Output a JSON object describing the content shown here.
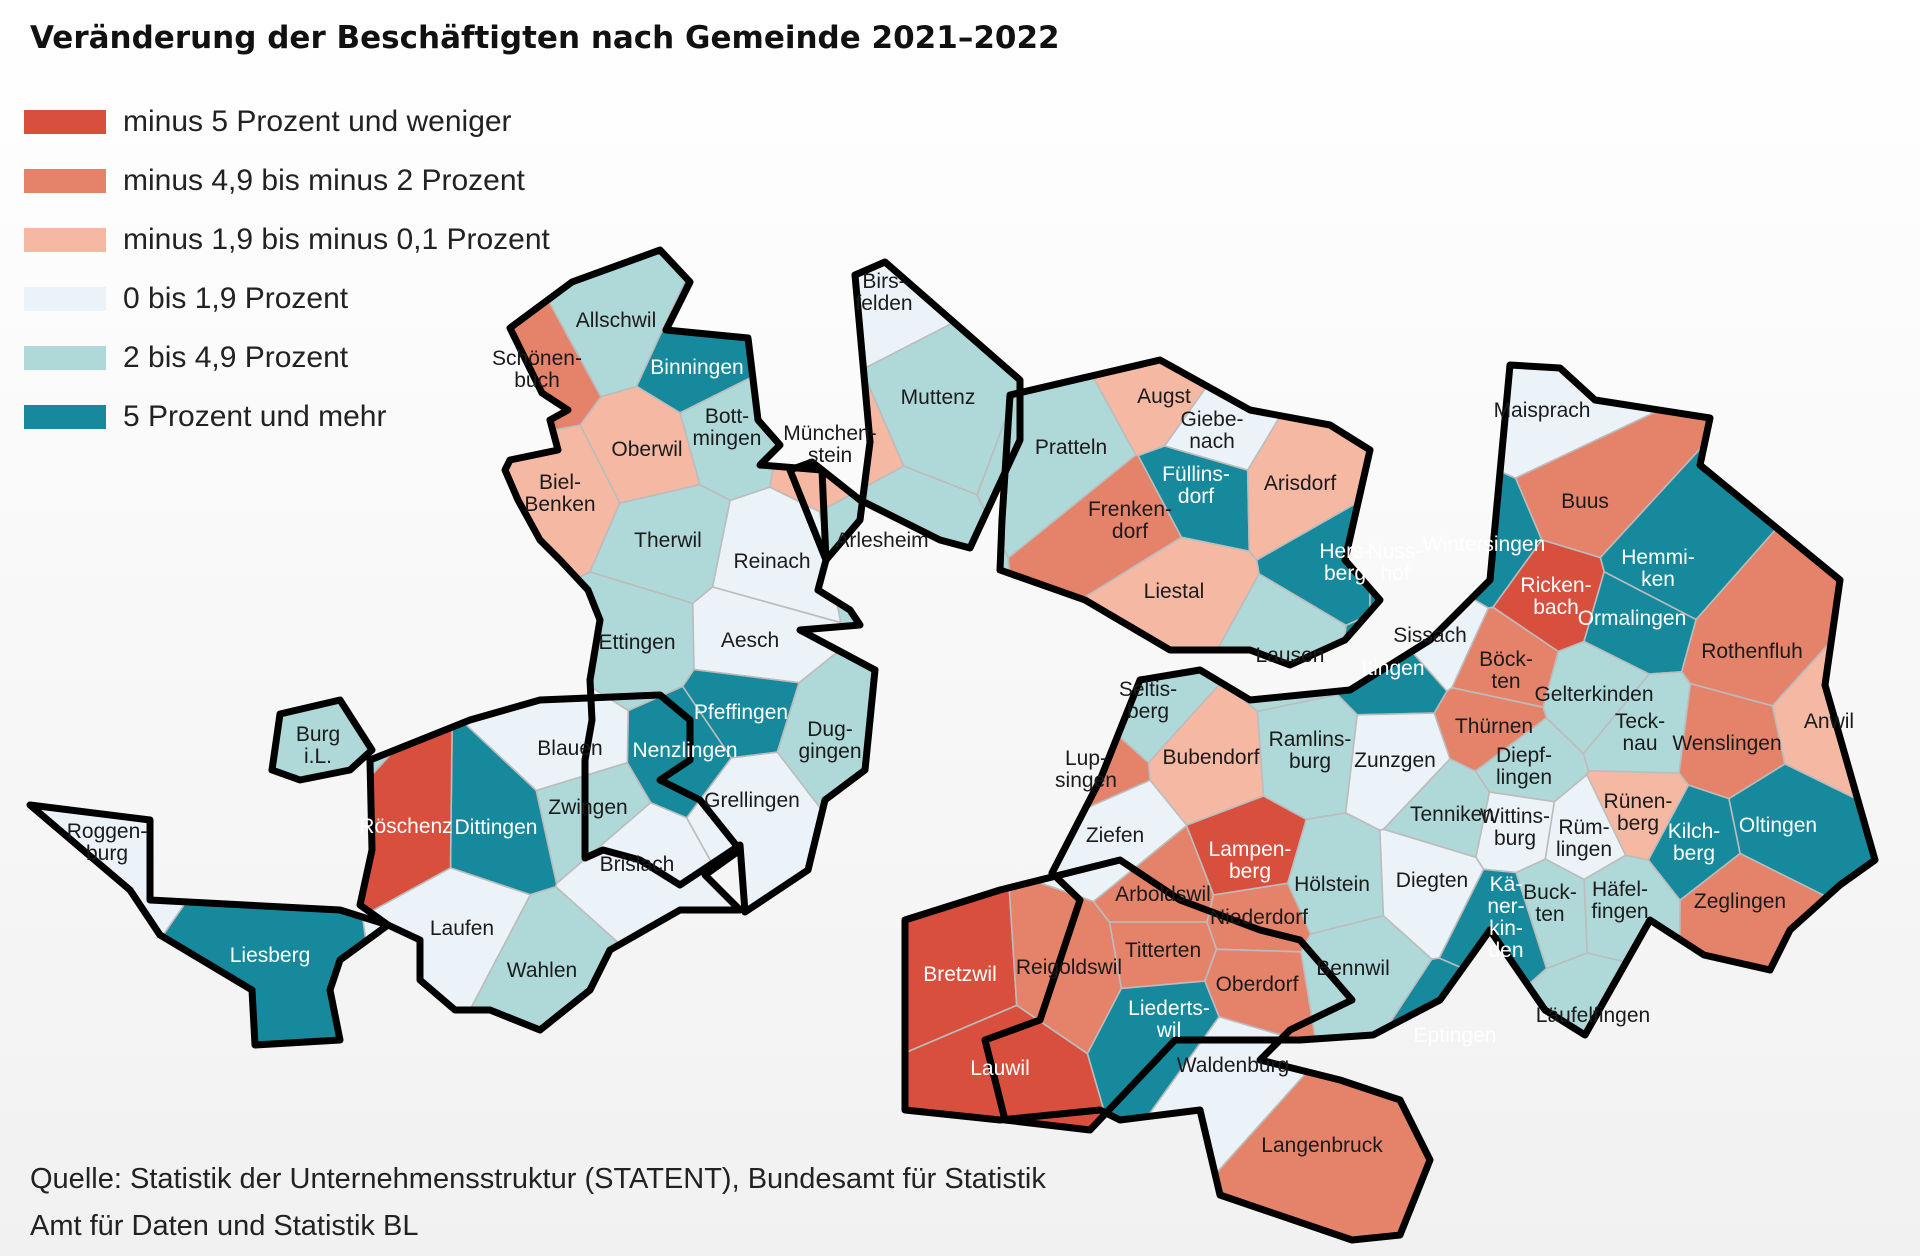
{
  "title": "Veränderung der Beschäftigten nach Gemeinde 2021–2022",
  "legend": [
    {
      "label": "minus 5 Prozent und weniger",
      "color": "#d94f3e"
    },
    {
      "label": "minus 4,9 bis minus 2 Prozent",
      "color": "#e5836a"
    },
    {
      "label": "minus 1,9 bis minus 0,1 Prozent",
      "color": "#f5b8a3"
    },
    {
      "label": "0 bis 1,9 Prozent",
      "color": "#ebf3f9"
    },
    {
      "label": "2 bis 4,9 Prozent",
      "color": "#afd8d9"
    },
    {
      "label": "5 Prozent und mehr",
      "color": "#16899c"
    }
  ],
  "municipalities": [
    {
      "name": "Allschwil",
      "class": 4
    },
    {
      "name": "Schönen-\nbuch",
      "class": 1
    },
    {
      "name": "Binningen",
      "class": 5
    },
    {
      "name": "Bott-\nmingen",
      "class": 4
    },
    {
      "name": "Oberwil",
      "class": 2
    },
    {
      "name": "Biel-\nBenken",
      "class": 2
    },
    {
      "name": "Therwil",
      "class": 4
    },
    {
      "name": "Reinach",
      "class": 3
    },
    {
      "name": "Ettingen",
      "class": 4
    },
    {
      "name": "Aesch",
      "class": 3
    },
    {
      "name": "Pfeffingen",
      "class": 5
    },
    {
      "name": "Dug-\ngingen",
      "class": 4
    },
    {
      "name": "Grellingen",
      "class": 3
    },
    {
      "name": "Nenzlingen",
      "class": 5
    },
    {
      "name": "Blauen",
      "class": 3
    },
    {
      "name": "Zwingen",
      "class": 4
    },
    {
      "name": "Brislach",
      "class": 3
    },
    {
      "name": "Dittingen",
      "class": 5
    },
    {
      "name": "Röschenz",
      "class": 0
    },
    {
      "name": "Burg\ni.L.",
      "class": 4
    },
    {
      "name": "Roggen-\nburg",
      "class": 3
    },
    {
      "name": "Liesberg",
      "class": 5
    },
    {
      "name": "Laufen",
      "class": 3
    },
    {
      "name": "Wahlen",
      "class": 4
    },
    {
      "name": "Birs-\nfelden",
      "class": 3
    },
    {
      "name": "München-\nstein",
      "class": 2
    },
    {
      "name": "Muttenz",
      "class": 4
    },
    {
      "name": "Arlesheim",
      "class": 4
    },
    {
      "name": "Pratteln",
      "class": 4
    },
    {
      "name": "Augst",
      "class": 2
    },
    {
      "name": "Giebe-\nnach",
      "class": 3
    },
    {
      "name": "Füllins-\ndorf",
      "class": 5
    },
    {
      "name": "Frenken-\ndorf",
      "class": 1
    },
    {
      "name": "Arisdorf",
      "class": 2
    },
    {
      "name": "Liestal",
      "class": 2
    },
    {
      "name": "Hers-\nberg",
      "class": 5
    },
    {
      "name": "Nuss-\nhof",
      "class": 5
    },
    {
      "name": "Wintersingen",
      "class": 5
    },
    {
      "name": "Maisprach",
      "class": 3
    },
    {
      "name": "Buus",
      "class": 1
    },
    {
      "name": "Hemmi-\nken",
      "class": 5
    },
    {
      "name": "Ricken-\nbach",
      "class": 0
    },
    {
      "name": "Ormalingen",
      "class": 5
    },
    {
      "name": "Rothenfluh",
      "class": 1
    },
    {
      "name": "Anwil",
      "class": 2
    },
    {
      "name": "Oltingen",
      "class": 5
    },
    {
      "name": "Wenslingen",
      "class": 1
    },
    {
      "name": "Kilch-\nberg",
      "class": 5
    },
    {
      "name": "Rünen-\nberg",
      "class": 2
    },
    {
      "name": "Zeglingen",
      "class": 1
    },
    {
      "name": "Gelterkinden",
      "class": 4
    },
    {
      "name": "Teck-\nnau",
      "class": 4
    },
    {
      "name": "Böck-\nten",
      "class": 1
    },
    {
      "name": "Thürnen",
      "class": 1
    },
    {
      "name": "Diepf-\nlingen",
      "class": 4
    },
    {
      "name": "Sissach",
      "class": 3
    },
    {
      "name": "Itingen",
      "class": 5
    },
    {
      "name": "Lausen",
      "class": 4
    },
    {
      "name": "Seltis-\nberg",
      "class": 4
    },
    {
      "name": "Bubendorf",
      "class": 2
    },
    {
      "name": "Ramlins-\nburg",
      "class": 4
    },
    {
      "name": "Lup-\nsingen",
      "class": 1
    },
    {
      "name": "Ziefen",
      "class": 3
    },
    {
      "name": "Zunzgen",
      "class": 3
    },
    {
      "name": "Tenniken",
      "class": 4
    },
    {
      "name": "Wittins-\nburg",
      "class": 3
    },
    {
      "name": "Rüm-\nlingen",
      "class": 3
    },
    {
      "name": "Lampen-\nberg",
      "class": 0
    },
    {
      "name": "Hölstein",
      "class": 4
    },
    {
      "name": "Diegten",
      "class": 3
    },
    {
      "name": "Kä-\nner-\nkin-\nden",
      "class": 5
    },
    {
      "name": "Buck-\nten",
      "class": 4
    },
    {
      "name": "Häfel-\nfingen",
      "class": 4
    },
    {
      "name": "Läufelfingen",
      "class": 4
    },
    {
      "name": "Arboldswil",
      "class": 1
    },
    {
      "name": "Niederdorf",
      "class": 1
    },
    {
      "name": "Titterten",
      "class": 1
    },
    {
      "name": "Bretzwil",
      "class": 0
    },
    {
      "name": "Reigoldswil",
      "class": 1
    },
    {
      "name": "Liederts-\nwil",
      "class": 5
    },
    {
      "name": "Oberdorf",
      "class": 1
    },
    {
      "name": "Bennwil",
      "class": 4
    },
    {
      "name": "Eptingen",
      "class": 5
    },
    {
      "name": "Lauwil",
      "class": 0
    },
    {
      "name": "Waldenburg",
      "class": 3
    },
    {
      "name": "Langenbruck",
      "class": 1
    }
  ],
  "source": [
    "Quelle: Statistik der Unternehmensstruktur (STATENT), Bundesamt für Statistik",
    "Amt für Daten und Statistik BL"
  ]
}
